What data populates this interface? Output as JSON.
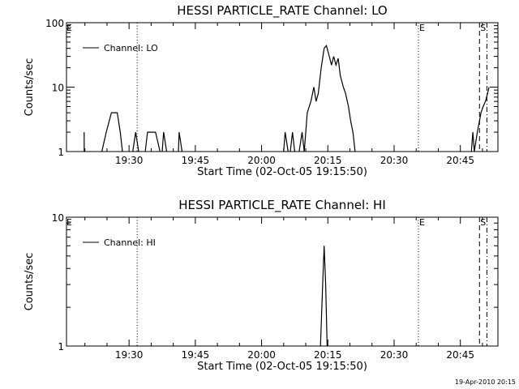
{
  "chart_data": [
    {
      "type": "line",
      "title": "HESSI PARTICLE_RATE Channel: LO",
      "xlabel": "Start Time (02-Oct-05 19:15:50)",
      "ylabel": "Counts/sec",
      "yscale": "log",
      "ylim": [
        1,
        100
      ],
      "xlim": [
        "19:15:50",
        "20:53:30"
      ],
      "yticks": [
        {
          "v": 1,
          "label": "1"
        },
        {
          "v": 10,
          "label": "10"
        },
        {
          "v": 100,
          "label": "100"
        }
      ],
      "xticks": [
        {
          "t": "19:30",
          "label": "19:30"
        },
        {
          "t": "19:45",
          "label": "19:45"
        },
        {
          "t": "20:00",
          "label": "20:00"
        },
        {
          "t": "20:15",
          "label": "20:15"
        },
        {
          "t": "20:30",
          "label": "20:30"
        },
        {
          "t": "20:45",
          "label": "20:45"
        }
      ],
      "legend": {
        "position": "top-left",
        "entries": [
          "Channel: LO"
        ]
      },
      "markers": [
        {
          "label": "E",
          "t": "19:15:50",
          "style": "none"
        },
        {
          "label": "",
          "t": "19:31:50",
          "style": "dotted"
        },
        {
          "label": "E",
          "t": "20:35:30",
          "style": "dotted"
        },
        {
          "label": "S",
          "t": "20:49:20",
          "style": "dashed"
        },
        {
          "label": "",
          "t": "20:51:00",
          "style": "dashdot"
        }
      ],
      "series": [
        {
          "name": "Channel: LO",
          "segments": [
            [
              [
                "19:19:50",
                1
              ],
              [
                "19:19:50",
                2
              ]
            ],
            [
              [
                "19:23:50",
                1
              ],
              [
                "19:24:50",
                2
              ],
              [
                "19:26:00",
                4
              ],
              [
                "19:27:20",
                4
              ],
              [
                "19:28:00",
                2
              ],
              [
                "19:28:30",
                1
              ]
            ],
            [
              [
                "19:30:50",
                1
              ],
              [
                "19:31:30",
                2
              ],
              [
                "19:32:10",
                1
              ]
            ],
            [
              [
                "19:33:40",
                1
              ],
              [
                "19:34:10",
                2
              ],
              [
                "19:36:00",
                2
              ],
              [
                "19:37:00",
                1
              ]
            ],
            [
              [
                "19:37:30",
                1
              ],
              [
                "19:37:50",
                2
              ],
              [
                "19:38:30",
                1
              ]
            ],
            [
              [
                "19:41:10",
                1
              ],
              [
                "19:41:20",
                2
              ],
              [
                "19:42:00",
                1
              ]
            ],
            [
              [
                "20:05:00",
                1
              ],
              [
                "20:05:20",
                2
              ],
              [
                "20:06:00",
                1
              ]
            ],
            [
              [
                "20:06:30",
                1
              ],
              [
                "20:07:00",
                2
              ],
              [
                "20:07:30",
                1
              ]
            ],
            [
              [
                "20:08:30",
                1
              ],
              [
                "20:09:10",
                2
              ],
              [
                "20:09:40",
                1
              ],
              [
                "20:10:20",
                4
              ],
              [
                "20:11:10",
                6
              ],
              [
                "20:11:50",
                10
              ],
              [
                "20:12:20",
                6
              ],
              [
                "20:12:50",
                8
              ],
              [
                "20:13:30",
                20
              ],
              [
                "20:14:10",
                40
              ],
              [
                "20:14:40",
                44
              ],
              [
                "20:15:20",
                30
              ],
              [
                "20:15:50",
                22
              ],
              [
                "20:16:20",
                30
              ],
              [
                "20:16:50",
                22
              ],
              [
                "20:17:20",
                28
              ],
              [
                "20:17:50",
                15
              ],
              [
                "20:18:30",
                10
              ],
              [
                "20:19:00",
                8
              ],
              [
                "20:19:40",
                5
              ],
              [
                "20:20:10",
                3
              ],
              [
                "20:20:40",
                2
              ],
              [
                "20:21:10",
                1
              ]
            ],
            [
              [
                "20:47:30",
                1
              ],
              [
                "20:47:50",
                2
              ],
              [
                "20:48:10",
                1
              ],
              [
                "20:48:50",
                2
              ],
              [
                "20:49:20",
                3
              ],
              [
                "20:49:40",
                4
              ],
              [
                "20:50:10",
                5
              ],
              [
                "20:50:40",
                6
              ],
              [
                "20:51:10",
                8
              ],
              [
                "20:51:30",
                10
              ]
            ]
          ]
        }
      ]
    },
    {
      "type": "line",
      "title": "HESSI PARTICLE_RATE Channel: HI",
      "xlabel": "Start Time (02-Oct-05 19:15:50)",
      "ylabel": "Counts/sec",
      "yscale": "log",
      "ylim": [
        1,
        10
      ],
      "xlim": [
        "19:15:50",
        "20:53:30"
      ],
      "yticks": [
        {
          "v": 1,
          "label": "1"
        },
        {
          "v": 10,
          "label": "10"
        }
      ],
      "xticks": [
        {
          "t": "19:30",
          "label": "19:30"
        },
        {
          "t": "19:45",
          "label": "19:45"
        },
        {
          "t": "20:00",
          "label": "20:00"
        },
        {
          "t": "20:15",
          "label": "20:15"
        },
        {
          "t": "20:30",
          "label": "20:30"
        },
        {
          "t": "20:45",
          "label": "20:45"
        }
      ],
      "legend": {
        "position": "top-left",
        "entries": [
          "Channel: HI"
        ]
      },
      "markers": [
        {
          "label": "E",
          "t": "19:15:50",
          "style": "none"
        },
        {
          "label": "",
          "t": "19:31:50",
          "style": "dotted"
        },
        {
          "label": "E",
          "t": "20:35:30",
          "style": "dotted"
        },
        {
          "label": "S",
          "t": "20:49:20",
          "style": "dashed"
        },
        {
          "label": "",
          "t": "20:51:00",
          "style": "dashdot"
        }
      ],
      "series": [
        {
          "name": "Channel: HI",
          "segments": [
            [
              [
                "20:13:20",
                1
              ],
              [
                "20:13:50",
                3
              ],
              [
                "20:14:10",
                6
              ],
              [
                "20:14:30",
                3
              ],
              [
                "20:14:50",
                1
              ]
            ]
          ]
        }
      ]
    }
  ],
  "footer": {
    "timestamp": "19-Apr-2010 20:15"
  }
}
